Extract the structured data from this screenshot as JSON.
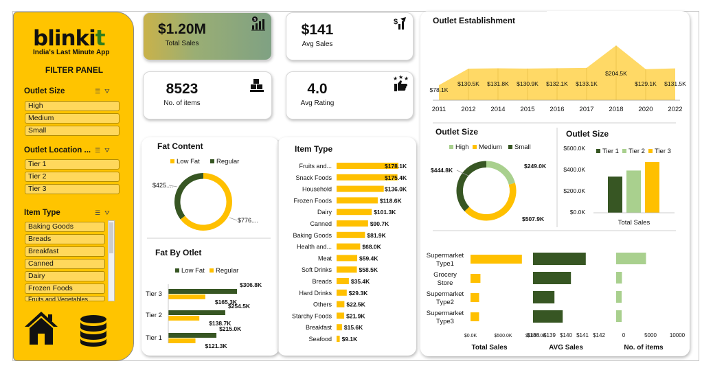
{
  "brand": {
    "logo_main": "blinki",
    "logo_accent": "t",
    "tagline": "India's Last Minute App"
  },
  "sidebar": {
    "filter_panel_title": "FILTER PANEL",
    "slicers": [
      {
        "title": "Outlet Size",
        "items": [
          "High",
          "Medium",
          "Small"
        ]
      },
      {
        "title": "Outlet Location ...",
        "items": [
          "Tier 1",
          "Tier 2",
          "Tier 3"
        ]
      },
      {
        "title": "Item Type",
        "items": [
          "Baking Goods",
          "Breads",
          "Breakfast",
          "Canned",
          "Dairy",
          "Frozen Foods",
          "Fruits and Vegetables"
        ]
      }
    ],
    "icons": [
      "multi-select-icon",
      "clear-filter-icon",
      "home-icon",
      "database-icon"
    ]
  },
  "kpis": [
    {
      "value": "$1.20M",
      "label": "Total Sales",
      "icon": "bar-chart-dollar-icon"
    },
    {
      "value": "$141",
      "label": "Avg Sales",
      "icon": "dollar-growth-icon"
    },
    {
      "value": "8523",
      "label": "No. of items",
      "icon": "boxes-icon"
    },
    {
      "value": "4.0",
      "label": "Avg Rating",
      "icon": "thumbs-up-stars-icon"
    }
  ],
  "colors": {
    "accent": "#FFC000",
    "dark_green": "#375623",
    "light_green": "#A9D08E",
    "sidebar": "#FFC400"
  },
  "chart_data": [
    {
      "type": "pie",
      "title": "Fat Content",
      "legend": [
        "Low Fat",
        "Regular"
      ],
      "values": [
        425,
        776
      ],
      "labels": [
        "$425....",
        "$776...."
      ],
      "colors": [
        "#FFC000",
        "#375623"
      ]
    },
    {
      "type": "bar",
      "title": "Fat By Otlet",
      "orientation": "horizontal",
      "categories": [
        "Tier 3",
        "Tier 2",
        "Tier 1"
      ],
      "series": [
        {
          "name": "Low Fat",
          "values": [
            306.8,
            254.5,
            215.0
          ],
          "labels": [
            "$306.8K",
            "$254.5K",
            "$215.0K"
          ]
        },
        {
          "name": "Regular",
          "values": [
            165.3,
            138.7,
            121.3
          ],
          "labels": [
            "$165.3K",
            "$138.7K",
            "$121.3K"
          ]
        }
      ],
      "colors": [
        "#375623",
        "#FFC000"
      ]
    },
    {
      "type": "bar",
      "title": "Item Type",
      "orientation": "horizontal",
      "categories": [
        "Fruits and...",
        "Snack Foods",
        "Household",
        "Frozen Foods",
        "Dairy",
        "Canned",
        "Baking Goods",
        "Health and...",
        "Meat",
        "Soft Drinks",
        "Breads",
        "Hard Drinks",
        "Others",
        "Starchy Foods",
        "Breakfast",
        "Seafood"
      ],
      "values": [
        178.1,
        175.4,
        136.0,
        118.6,
        101.3,
        90.7,
        81.9,
        68.0,
        59.4,
        58.5,
        35.4,
        29.3,
        22.5,
        21.9,
        15.6,
        9.1
      ],
      "labels": [
        "$178.1K",
        "$175.4K",
        "$136.0K",
        "$118.6K",
        "$101.3K",
        "$90.7K",
        "$81.9K",
        "$68.0K",
        "$59.4K",
        "$58.5K",
        "$35.4K",
        "$29.3K",
        "$22.5K",
        "$21.9K",
        "$15.6K",
        "$9.1K"
      ]
    },
    {
      "type": "area",
      "title": "Outlet Establishment",
      "x": [
        "2011",
        "2012",
        "2014",
        "2015",
        "2016",
        "2017",
        "2018",
        "2020",
        "2022"
      ],
      "values": [
        78.1,
        130.5,
        131.8,
        130.9,
        132.1,
        133.1,
        204.5,
        129.1,
        131.5
      ],
      "labels": [
        "$78.1K",
        "$130.5K",
        "$131.8K",
        "$130.9K",
        "$132.1K",
        "$133.1K",
        "$204.5K",
        "$129.1K",
        "$131.5K"
      ]
    },
    {
      "type": "pie",
      "title": "Outlet Size",
      "legend": [
        "High",
        "Medium",
        "Small"
      ],
      "values": [
        249.0,
        507.9,
        444.8
      ],
      "labels": [
        "$249.0K",
        "$507.9K",
        "$444.8K"
      ],
      "colors": [
        "#A9D08E",
        "#FFC000",
        "#375623"
      ]
    },
    {
      "type": "bar",
      "title": "Outlet Size",
      "legend": [
        "Tier 1",
        "Tier 2",
        "Tier 3"
      ],
      "xlabel": "Total Sales",
      "yticks": [
        "$600.0K",
        "$400.0K",
        "$200.0K",
        "$0.0K"
      ],
      "ylim": [
        0,
        600
      ],
      "values": [
        336.4,
        393.2,
        472.1
      ],
      "colors": [
        "#375623",
        "#A9D08E",
        "#FFC000"
      ]
    },
    {
      "type": "bar",
      "orientation": "horizontal",
      "categories": [
        "Supermarket Type1",
        "Grocery Store",
        "Supermarket Type2",
        "Supermarket Type3"
      ],
      "panels": [
        {
          "xlabel": "Total Sales",
          "ticks": [
            "$0.0K",
            "$500.0K",
            "$1000.0K"
          ],
          "xlim": [
            0,
            1000
          ],
          "values": [
            787.5,
            151.9,
            131.5,
            130.7
          ],
          "color": "#FFC000"
        },
        {
          "xlabel": "AVG Sales",
          "ticks": [
            "$138",
            "$139",
            "$140",
            "$141",
            "$142"
          ],
          "xlim": [
            138,
            142
          ],
          "values": [
            141.2,
            140.3,
            139.3,
            139.8
          ],
          "color": "#375623"
        },
        {
          "xlabel": "No. of items",
          "ticks": [
            "0",
            "5000",
            "10000"
          ],
          "xlim": [
            0,
            10000
          ],
          "values": [
            5577,
            1083,
            928,
            935
          ],
          "color": "#A9D08E"
        }
      ]
    }
  ]
}
